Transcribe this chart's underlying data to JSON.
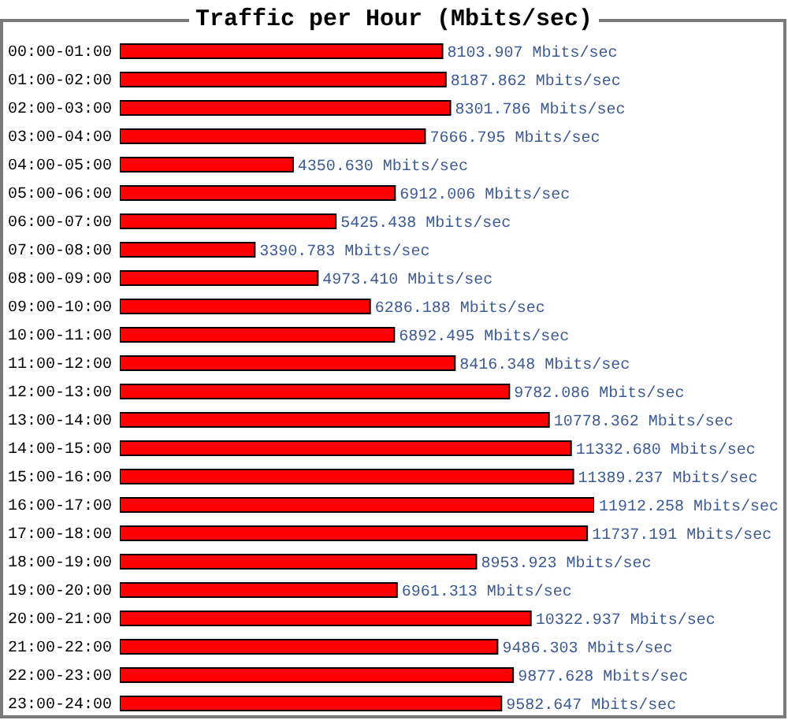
{
  "chart_data": {
    "type": "bar",
    "title": "Traffic per Hour (Mbits/sec)",
    "orientation": "horizontal",
    "tick_labels": "y",
    "color": "#ff0000",
    "categories": [
      "00:00-01:00",
      "01:00-02:00",
      "02:00-03:00",
      "03:00-04:00",
      "04:00-05:00",
      "05:00-06:00",
      "06:00-07:00",
      "07:00-08:00",
      "08:00-09:00",
      "09:00-10:00",
      "10:00-11:00",
      "11:00-12:00",
      "12:00-13:00",
      "13:00-14:00",
      "14:00-15:00",
      "15:00-16:00",
      "16:00-17:00",
      "17:00-18:00",
      "18:00-19:00",
      "19:00-20:00",
      "20:00-21:00",
      "21:00-22:00",
      "22:00-23:00",
      "23:00-24:00"
    ],
    "values": [
      8103.907,
      8187.862,
      8301.786,
      7666.795,
      4350.63,
      6912.006,
      5425.438,
      3390.783,
      4973.41,
      6286.188,
      6892.495,
      8416.348,
      9782.086,
      10778.362,
      11332.68,
      11389.237,
      11912.258,
      11737.191,
      8953.923,
      6961.313,
      10322.937,
      9486.303,
      9877.628,
      9582.647
    ],
    "value_labels": [
      "8103.907 Mbits/sec",
      "8187.862 Mbits/sec",
      "8301.786 Mbits/sec",
      "7666.795 Mbits/sec",
      "4350.630 Mbits/sec",
      "6912.006 Mbits/sec",
      "5425.438 Mbits/sec",
      "3390.783 Mbits/sec",
      "4973.410 Mbits/sec",
      "6286.188 Mbits/sec",
      "6892.495 Mbits/sec",
      "8416.348 Mbits/sec",
      "9782.086 Mbits/sec",
      "10778.362 Mbits/sec",
      "11332.680 Mbits/sec",
      "11389.237 Mbits/sec",
      "11912.258 Mbits/sec",
      "11737.191 Mbits/sec",
      "8953.923 Mbits/sec",
      "6961.313 Mbits/sec",
      "10322.937 Mbits/sec",
      "9486.303 Mbits/sec",
      "9877.628 Mbits/sec",
      "9582.647 Mbits/sec"
    ]
  }
}
